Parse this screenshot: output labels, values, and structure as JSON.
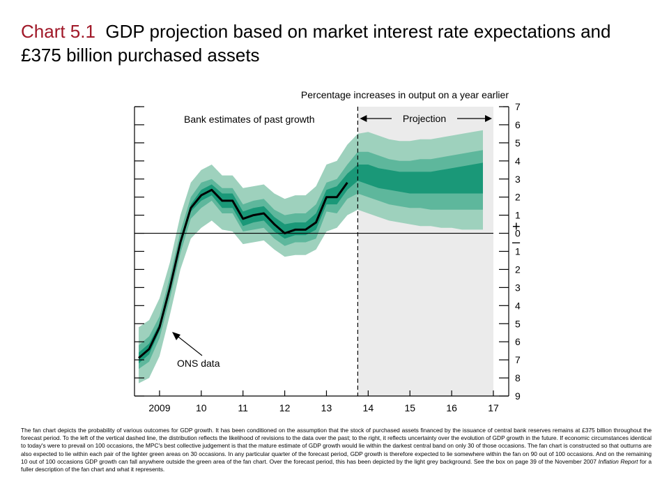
{
  "slide": {
    "title_prefix": "Chart 5.1",
    "title_text": "GDP projection based on market interest rate expectations and £375 billion purchased assets"
  },
  "chart_data": {
    "type": "area",
    "title": "Percentage increases in output on a year earlier",
    "annotations": {
      "past": "Bank estimates of past growth",
      "projection": "Projection",
      "ons": "ONS data"
    },
    "x_tick_labels": [
      "2009",
      "10",
      "11",
      "12",
      "13",
      "14",
      "15",
      "16",
      "17"
    ],
    "x_ticks": [
      2009,
      2010,
      2011,
      2012,
      2013,
      2014,
      2015,
      2016,
      2017
    ],
    "xlim": [
      2008.4,
      2017.0
    ],
    "projection_start": 2013.75,
    "y_tick_labels": [
      "7",
      "6",
      "5",
      "4",
      "3",
      "2",
      "1",
      "0",
      "1",
      "2",
      "3",
      "4",
      "5",
      "6",
      "7",
      "8",
      "9"
    ],
    "y_ticks": [
      7,
      6,
      5,
      4,
      3,
      2,
      1,
      0,
      -1,
      -2,
      -3,
      -4,
      -5,
      -6,
      -7,
      -8,
      -9
    ],
    "ylim": [
      -9,
      7
    ],
    "sign_labels": {
      "plus": "+",
      "minus": "–"
    },
    "x": [
      2008.5,
      2008.75,
      2009.0,
      2009.25,
      2009.5,
      2009.75,
      2010.0,
      2010.25,
      2010.5,
      2010.75,
      2011.0,
      2011.25,
      2011.5,
      2011.75,
      2012.0,
      2012.25,
      2012.5,
      2012.75,
      2013.0,
      2013.25,
      2013.5,
      2013.75,
      2014.0,
      2014.25,
      2014.5,
      2014.75,
      2015.0,
      2015.25,
      2015.5,
      2015.75,
      2016.0,
      2016.25,
      2016.5,
      2016.75
    ],
    "ons_data": [
      -6.9,
      -6.4,
      -5.2,
      -3.0,
      -0.5,
      1.4,
      2.1,
      2.4,
      1.8,
      1.8,
      0.8,
      1.0,
      1.1,
      0.5,
      0.0,
      0.2,
      0.2,
      0.6,
      2.0,
      2.0,
      2.8
    ],
    "bands": {
      "outer_upper": [
        -5.2,
        -4.8,
        -3.6,
        -1.6,
        1.0,
        2.8,
        3.5,
        3.8,
        3.2,
        3.2,
        2.5,
        2.6,
        2.7,
        2.2,
        1.9,
        2.1,
        2.1,
        2.6,
        3.8,
        4.0,
        4.9,
        5.5,
        5.6,
        5.4,
        5.2,
        5.1,
        5.1,
        5.2,
        5.2,
        5.3,
        5.4,
        5.5,
        5.6,
        5.7
      ],
      "outer_lower": [
        -8.3,
        -8.0,
        -6.8,
        -4.5,
        -2.0,
        -0.3,
        0.3,
        0.7,
        0.2,
        0.1,
        -0.6,
        -0.5,
        -0.4,
        -0.9,
        -1.3,
        -1.2,
        -1.2,
        -0.9,
        0.1,
        0.3,
        1.0,
        1.3,
        1.1,
        0.9,
        0.7,
        0.6,
        0.5,
        0.4,
        0.4,
        0.3,
        0.3,
        0.2,
        0.2,
        0.2
      ],
      "mid_upper": [
        -6.2,
        -5.7,
        -4.6,
        -2.4,
        0.1,
        2.0,
        2.8,
        3.0,
        2.5,
        2.5,
        1.6,
        1.8,
        1.9,
        1.3,
        1.0,
        1.1,
        1.1,
        1.6,
        2.8,
        3.0,
        3.8,
        4.5,
        4.5,
        4.3,
        4.1,
        4.0,
        4.0,
        4.1,
        4.1,
        4.2,
        4.3,
        4.4,
        4.5,
        4.6
      ],
      "mid_lower": [
        -7.5,
        -7.1,
        -5.8,
        -3.6,
        -1.1,
        0.8,
        1.4,
        1.8,
        1.1,
        1.1,
        0.1,
        0.2,
        0.3,
        -0.3,
        -0.7,
        -0.5,
        -0.5,
        -0.3,
        1.2,
        1.1,
        1.9,
        2.2,
        2.0,
        1.8,
        1.6,
        1.5,
        1.4,
        1.4,
        1.3,
        1.3,
        1.3,
        1.3,
        1.3,
        1.3
      ],
      "inner_upper": [
        -6.6,
        -6.1,
        -5.0,
        -2.8,
        -0.3,
        1.6,
        2.4,
        2.7,
        2.2,
        2.2,
        1.2,
        1.4,
        1.5,
        0.9,
        0.5,
        0.6,
        0.6,
        1.1,
        2.4,
        2.6,
        3.3,
        3.8,
        3.8,
        3.6,
        3.5,
        3.4,
        3.4,
        3.4,
        3.4,
        3.5,
        3.6,
        3.7,
        3.8,
        3.9
      ],
      "inner_lower": [
        -7.2,
        -6.7,
        -5.4,
        -3.2,
        -0.7,
        1.2,
        1.8,
        2.1,
        1.4,
        1.4,
        0.4,
        0.6,
        0.7,
        0.1,
        -0.3,
        -0.1,
        -0.1,
        0.2,
        1.6,
        1.6,
        2.4,
        2.9,
        2.7,
        2.5,
        2.4,
        2.3,
        2.2,
        2.2,
        2.2,
        2.2,
        2.2,
        2.2,
        2.2,
        2.2
      ]
    },
    "colors": {
      "outer": "#9ed1bd",
      "mid": "#5eb79c",
      "inner": "#1a9878",
      "projection_bg": "#ebebeb",
      "line": "#000000",
      "title_prefix": "#a01828"
    },
    "grid": false
  },
  "caption": {
    "part1": "The fan chart depicts the probability of various outcomes for GDP growth.  It has been conditioned on the assumption that the stock of purchased assets financed by the issuance of central bank reserves remains at £375 billion throughout the forecast period.  To the left of the vertical dashed line, the distribution reflects the likelihood of revisions to the data over the past; to the right, it reflects uncertainty over the evolution of GDP growth in the future.  If economic circumstances identical to today's were to prevail on 100 occasions, the MPC's best collective judgement is that the mature estimate of GDP growth would lie within the darkest central band on only 30 of those occasions.  The fan chart is constructed so that outturns are also expected to lie within each pair of the lighter green areas on 30 occasions.  In any particular quarter of the forecast period, GDP growth is therefore expected to lie somewhere within the fan on 90 out of 100 occasions.  And on the remaining 10 out of 100 occasions GDP growth can fall anywhere outside the green area of the fan chart.  Over the forecast period, this has been depicted by the light grey background.  See the box on page 39 of the November 2007 ",
    "italic": "Inflation Report",
    "part2": " for a fuller description of the fan chart and what it represents."
  }
}
